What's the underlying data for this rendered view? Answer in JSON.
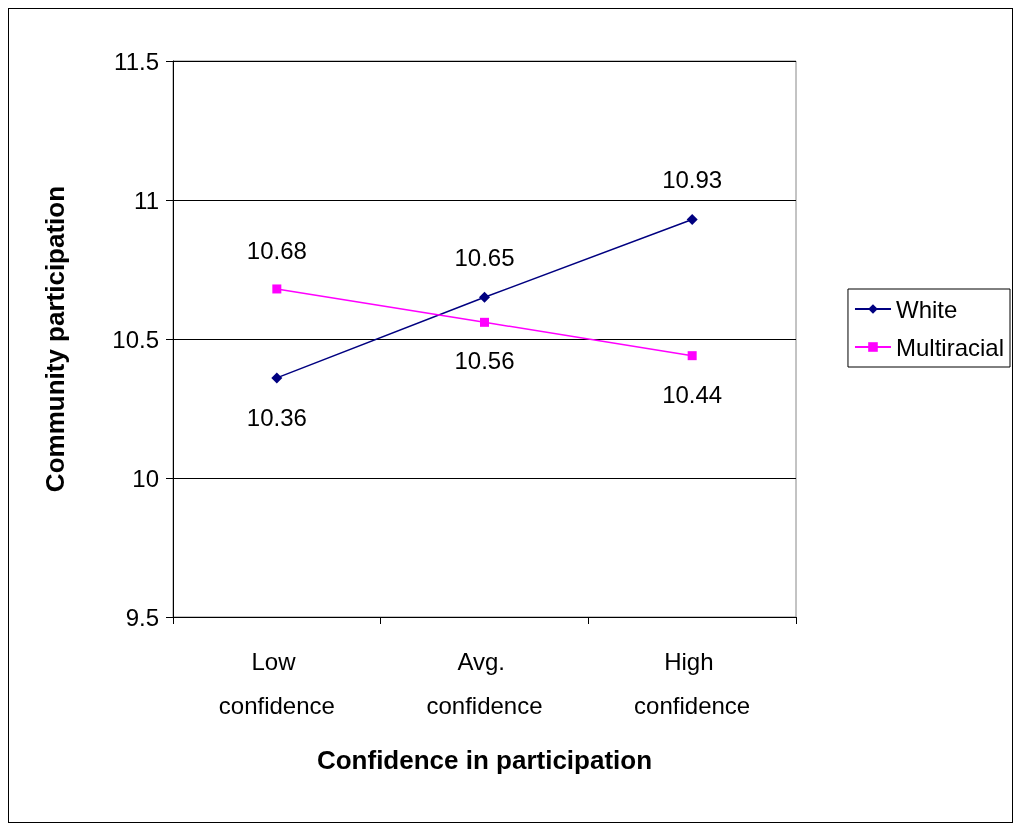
{
  "chart_data": {
    "type": "line",
    "xlabel": "Confidence in participation",
    "ylabel": "Community participation",
    "categories": [
      "Low confidence",
      "Avg. confidence",
      "High confidence"
    ],
    "series": [
      {
        "name": "White",
        "color": "#000080",
        "marker": "diamond",
        "values": [
          10.36,
          10.65,
          10.93
        ]
      },
      {
        "name": "Multiracial",
        "color": "#ff00ff",
        "marker": "square",
        "values": [
          10.68,
          10.56,
          10.44
        ]
      }
    ],
    "ylim": [
      9.5,
      11.5
    ],
    "yticks": [
      9.5,
      10,
      10.5,
      11,
      11.5
    ],
    "grid": "y",
    "legend": "right",
    "data_labels": true
  }
}
